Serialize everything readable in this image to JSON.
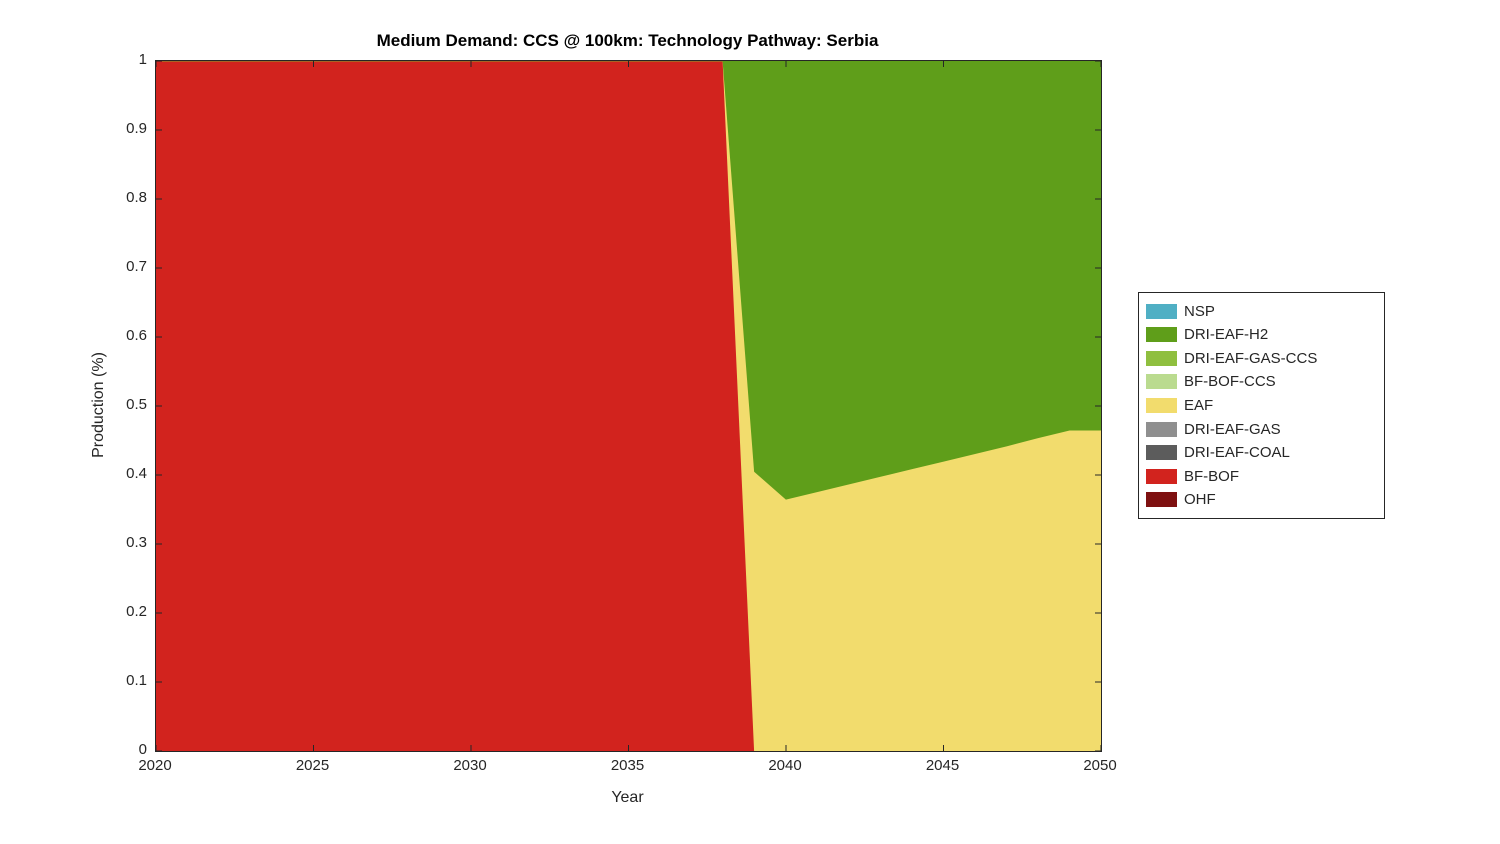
{
  "chart_data": {
    "type": "area",
    "stacked": true,
    "title": "Medium Demand: CCS @ 100km: Technology Pathway: Serbia",
    "xlabel": "Year",
    "ylabel": "Production (%)",
    "xlim": [
      2020,
      2050
    ],
    "ylim": [
      0,
      1
    ],
    "grid": false,
    "box": true,
    "legend_position": "right-outside",
    "xtick_values": [
      2020,
      2025,
      2030,
      2035,
      2040,
      2045,
      2050
    ],
    "xtick_labels": [
      "2020",
      "2025",
      "2030",
      "2035",
      "2040",
      "2045",
      "2050"
    ],
    "ytick_values": [
      0,
      0.1,
      0.2,
      0.3,
      0.4,
      0.5,
      0.6,
      0.7,
      0.8,
      0.9,
      1
    ],
    "ytick_labels": [
      "0",
      "0.1",
      "0.2",
      "0.3",
      "0.4",
      "0.5",
      "0.6",
      "0.7",
      "0.8",
      "0.9",
      "1"
    ],
    "x": [
      2020,
      2025,
      2030,
      2035,
      2038,
      2039,
      2040,
      2041,
      2042,
      2043,
      2044,
      2045,
      2046,
      2047,
      2048,
      2049,
      2050
    ],
    "stack_order_note": "series listed in legend order (top of stack first); bottom of stack is the last entry",
    "series": [
      {
        "name": "NSP",
        "color": "#4FAFC4",
        "values": [
          0,
          0,
          0,
          0,
          0,
          0,
          0,
          0,
          0,
          0,
          0,
          0,
          0,
          0,
          0,
          0,
          0
        ]
      },
      {
        "name": "DRI-EAF-H2",
        "color": "#5F9E1A",
        "values": [
          0,
          0,
          0,
          0,
          0,
          0.595,
          0.635,
          0.624,
          0.613,
          0.602,
          0.591,
          0.58,
          0.569,
          0.558,
          0.546,
          0.535,
          0.535
        ]
      },
      {
        "name": "DRI-EAF-GAS-CCS",
        "color": "#8FBF3F",
        "values": [
          0,
          0,
          0,
          0,
          0,
          0,
          0,
          0,
          0,
          0,
          0,
          0,
          0,
          0,
          0,
          0,
          0
        ]
      },
      {
        "name": "BF-BOF-CCS",
        "color": "#BADB8F",
        "values": [
          0,
          0,
          0,
          0,
          0,
          0,
          0,
          0,
          0,
          0,
          0,
          0,
          0,
          0,
          0,
          0,
          0
        ]
      },
      {
        "name": "EAF",
        "color": "#F2DC6D",
        "values": [
          0,
          0,
          0,
          0,
          0,
          0.405,
          0.365,
          0.376,
          0.387,
          0.398,
          0.409,
          0.42,
          0.431,
          0.442,
          0.454,
          0.465,
          0.465
        ]
      },
      {
        "name": "DRI-EAF-GAS",
        "color": "#8F8F8F",
        "values": [
          0,
          0,
          0,
          0,
          0,
          0,
          0,
          0,
          0,
          0,
          0,
          0,
          0,
          0,
          0,
          0,
          0
        ]
      },
      {
        "name": "DRI-EAF-COAL",
        "color": "#5C5C5C",
        "values": [
          0,
          0,
          0,
          0,
          0,
          0,
          0,
          0,
          0,
          0,
          0,
          0,
          0,
          0,
          0,
          0,
          0
        ]
      },
      {
        "name": "BF-BOF",
        "color": "#D2231E",
        "values": [
          1,
          1,
          1,
          1,
          1,
          0,
          0,
          0,
          0,
          0,
          0,
          0,
          0,
          0,
          0,
          0,
          0
        ]
      },
      {
        "name": "OHF",
        "color": "#7E1010",
        "values": [
          0,
          0,
          0,
          0,
          0,
          0,
          0,
          0,
          0,
          0,
          0,
          0,
          0,
          0,
          0,
          0,
          0
        ]
      }
    ]
  }
}
